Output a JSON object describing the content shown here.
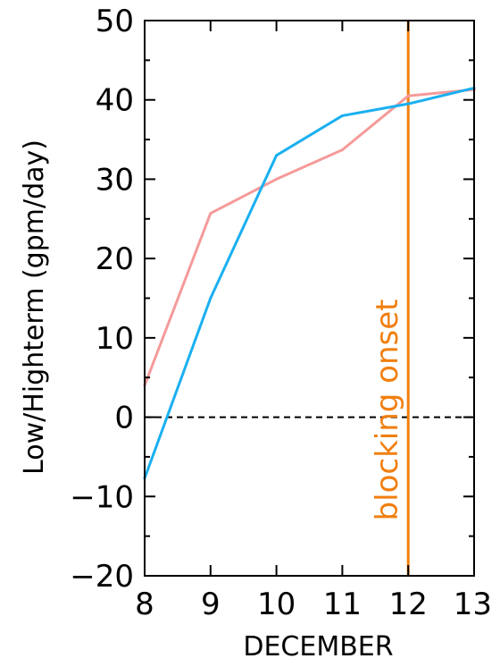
{
  "chart_data": {
    "type": "line",
    "xlabel": "DECEMBER",
    "ylabel": "Low/Highterm (gpm/day)",
    "xlim": [
      8,
      13
    ],
    "ylim": [
      -20,
      50
    ],
    "x_ticks": [
      8,
      9,
      10,
      11,
      12,
      13
    ],
    "y_ticks": [
      -20,
      -10,
      0,
      10,
      20,
      30,
      40,
      50
    ],
    "y_tick_labels": [
      "−20",
      "−10",
      "0",
      "10",
      "20",
      "30",
      "40",
      "50"
    ],
    "grid": false,
    "zero_line": {
      "y": 0,
      "style": "dashed",
      "color": "#000000"
    },
    "series": [
      {
        "color": "#f59a9a",
        "x": [
          8,
          9,
          10,
          11,
          12,
          13
        ],
        "y": [
          4,
          25.7,
          30,
          33.7,
          40.5,
          41.3
        ]
      },
      {
        "color": "#1ab0f0",
        "x": [
          8,
          9,
          10,
          11,
          12,
          13
        ],
        "y": [
          -7.7,
          15,
          33,
          38,
          39.5,
          41.5
        ]
      }
    ],
    "annotations": [
      {
        "type": "vline",
        "x": 12,
        "color": "#f07f0f",
        "label": "blocking onset"
      }
    ]
  }
}
